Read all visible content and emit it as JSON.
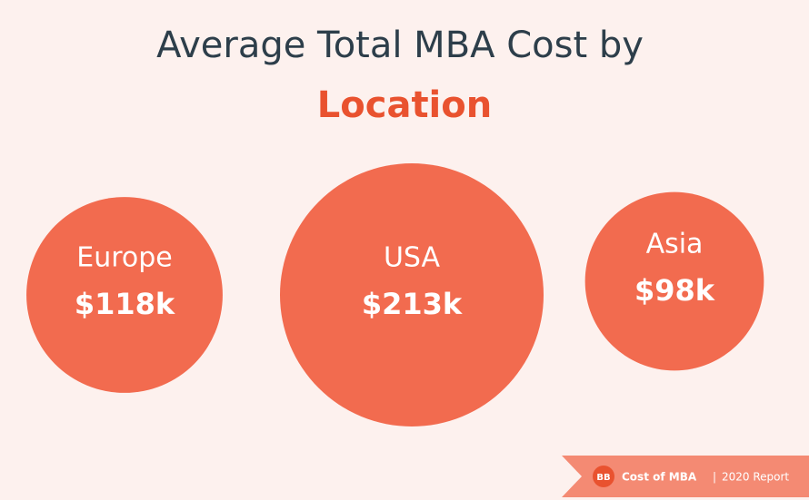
{
  "chart_data": {
    "type": "bubble",
    "title": "Average Total MBA Cost by",
    "title_highlight": "Location",
    "categories": [
      "Europe",
      "USA",
      "Asia"
    ],
    "values": [
      118,
      213,
      98
    ],
    "value_labels": [
      "$118k",
      "$213k",
      "$98k"
    ],
    "color": "#f26b4f"
  },
  "footer": {
    "logo": "BB",
    "brand": "Cost of MBA",
    "separator": "|",
    "report": "2020 Report"
  }
}
